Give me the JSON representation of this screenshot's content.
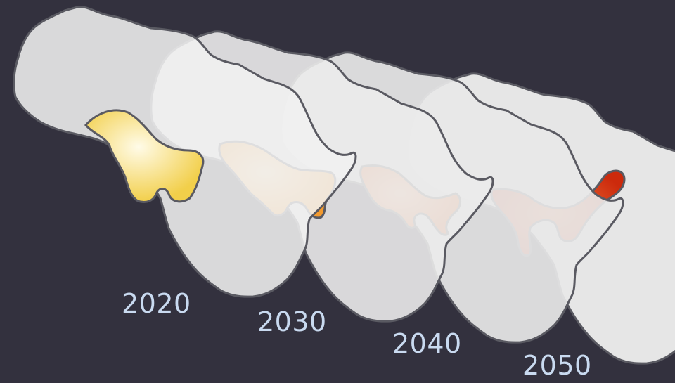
{
  "background_color": "#33313e",
  "continent_color": "#f0f0f0",
  "continent_outline": "#5a5a62",
  "frames": [
    {
      "year": "2020",
      "region_color": "#f5d45a"
    },
    {
      "year": "2030",
      "region_color": "#f3a23a"
    },
    {
      "year": "2040",
      "region_color": "#ee7020"
    },
    {
      "year": "2050",
      "region_color": "#d63010"
    }
  ]
}
